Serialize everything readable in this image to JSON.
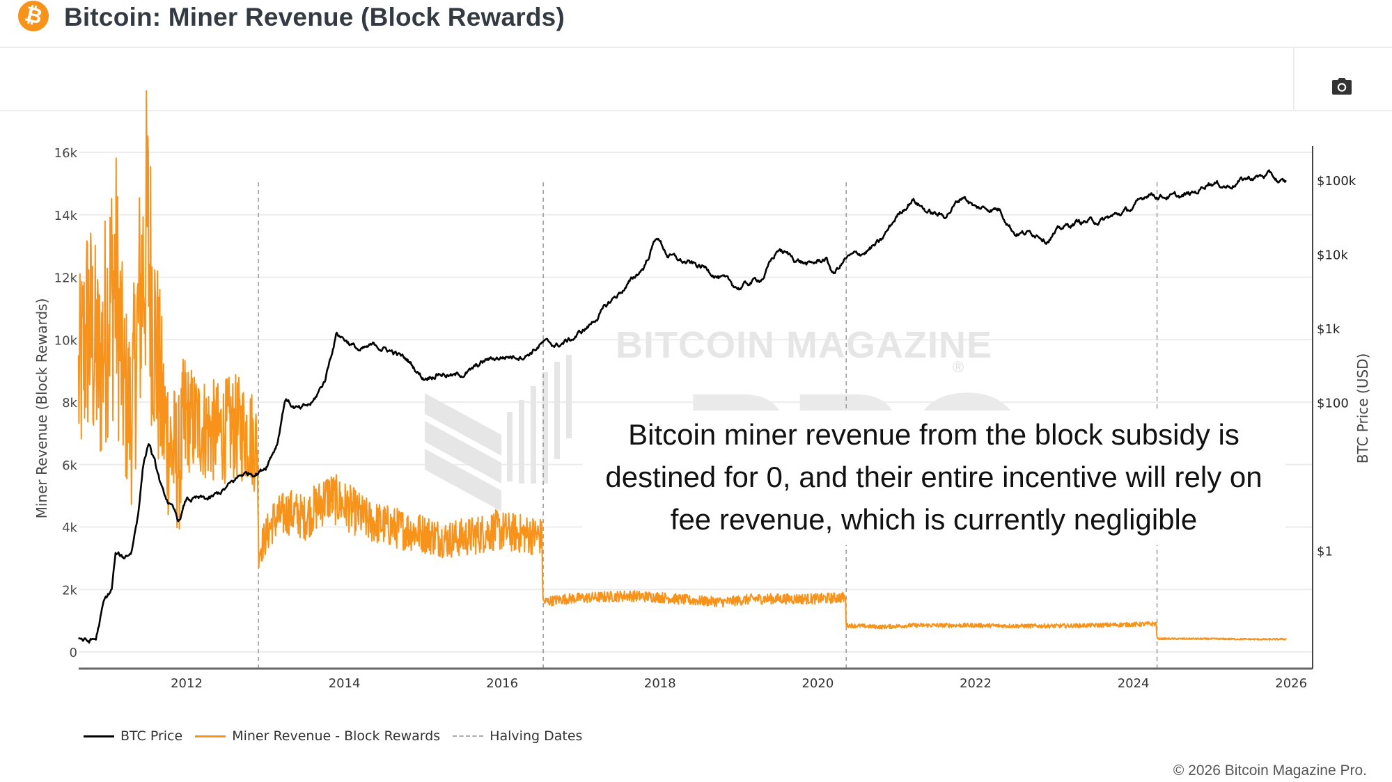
{
  "header": {
    "logo_icon": "bitcoin-logo-icon",
    "logo_glyph": "₿",
    "title": "Bitcoin: Miner Revenue (Block Rewards)"
  },
  "toolbar": {
    "screenshot_icon": "camera-icon"
  },
  "watermark": {
    "line1": "BITCOIN MAGAZINE",
    "line2": "PRO",
    "mark": "®"
  },
  "annotation": {
    "text": "Bitcoin miner revenue from the block subsidy is destined for 0, and their entire incentive will rely on fee revenue, which is currently negligible"
  },
  "footer": {
    "copyright": "© 2026 Bitcoin Magazine Pro."
  },
  "colors": {
    "btc_price": "#000000",
    "miner_revenue": "#f7931a",
    "halving": "#999999",
    "grid": "#ececec",
    "axis": "#444444"
  },
  "chart_data": {
    "type": "line",
    "title": "Bitcoin: Miner Revenue (Block Rewards)",
    "xlabel": "",
    "ylabel": "Miner Revenue (Block Rewards)",
    "y2label": "BTC Price (USD)",
    "x_ticks": [
      "2012",
      "2014",
      "2016",
      "2018",
      "2020",
      "2022",
      "2024",
      "2026"
    ],
    "x_range": [
      2010.63,
      2026.0
    ],
    "y_ticks": [
      "0",
      "2k",
      "4k",
      "6k",
      "8k",
      "10k",
      "12k",
      "14k",
      "16k"
    ],
    "y_range": [
      0,
      16000
    ],
    "y2_scale": "log",
    "y2_ticks": [
      "$1",
      "$100",
      "$1k",
      "$10k",
      "$100k"
    ],
    "y2_tick_values": [
      1,
      100,
      1000,
      10000,
      100000
    ],
    "grid": true,
    "legend_position": "bottom-left",
    "legend": [
      "BTC Price",
      "Miner Revenue - Block Rewards",
      "Halving Dates"
    ],
    "halving_dates": [
      2012.91,
      2016.52,
      2020.36,
      2024.3
    ],
    "series": [
      {
        "name": "BTC Price",
        "axis": "right",
        "points": [
          [
            2010.63,
            0.07
          ],
          [
            2010.75,
            0.06
          ],
          [
            2010.85,
            0.065
          ],
          [
            2010.95,
            0.2
          ],
          [
            2011.05,
            0.3
          ],
          [
            2011.1,
            0.9
          ],
          [
            2011.2,
            0.8
          ],
          [
            2011.3,
            1.0
          ],
          [
            2011.38,
            3
          ],
          [
            2011.45,
            15
          ],
          [
            2011.52,
            30
          ],
          [
            2011.6,
            15
          ],
          [
            2011.7,
            6
          ],
          [
            2011.8,
            4
          ],
          [
            2011.9,
            2.5
          ],
          [
            2012.0,
            5
          ],
          [
            2012.1,
            5
          ],
          [
            2012.3,
            5
          ],
          [
            2012.5,
            7
          ],
          [
            2012.7,
            11
          ],
          [
            2012.91,
            12
          ],
          [
            2013.0,
            14
          ],
          [
            2013.15,
            30
          ],
          [
            2013.25,
            120
          ],
          [
            2013.35,
            90
          ],
          [
            2013.45,
            80
          ],
          [
            2013.6,
            100
          ],
          [
            2013.75,
            200
          ],
          [
            2013.9,
            900
          ],
          [
            2014.0,
            750
          ],
          [
            2014.2,
            500
          ],
          [
            2014.4,
            600
          ],
          [
            2014.6,
            500
          ],
          [
            2014.8,
            380
          ],
          [
            2015.0,
            220
          ],
          [
            2015.2,
            260
          ],
          [
            2015.4,
            230
          ],
          [
            2015.6,
            270
          ],
          [
            2015.8,
            380
          ],
          [
            2016.0,
            420
          ],
          [
            2016.3,
            450
          ],
          [
            2016.52,
            650
          ],
          [
            2016.7,
            600
          ],
          [
            2016.9,
            750
          ],
          [
            2017.1,
            1100
          ],
          [
            2017.4,
            2500
          ],
          [
            2017.6,
            4000
          ],
          [
            2017.8,
            7000
          ],
          [
            2017.96,
            18000
          ],
          [
            2018.1,
            10000
          ],
          [
            2018.3,
            8000
          ],
          [
            2018.6,
            6500
          ],
          [
            2018.9,
            4000
          ],
          [
            2019.0,
            3600
          ],
          [
            2019.3,
            5000
          ],
          [
            2019.5,
            12000
          ],
          [
            2019.7,
            9000
          ],
          [
            2019.9,
            7300
          ],
          [
            2020.1,
            9000
          ],
          [
            2020.2,
            5500
          ],
          [
            2020.36,
            9000
          ],
          [
            2020.6,
            11000
          ],
          [
            2020.8,
            15000
          ],
          [
            2021.0,
            33000
          ],
          [
            2021.2,
            58000
          ],
          [
            2021.4,
            38000
          ],
          [
            2021.6,
            33000
          ],
          [
            2021.85,
            64000
          ],
          [
            2022.0,
            43000
          ],
          [
            2022.3,
            42000
          ],
          [
            2022.5,
            20000
          ],
          [
            2022.8,
            19500
          ],
          [
            2022.9,
            16500
          ],
          [
            2023.1,
            23000
          ],
          [
            2023.3,
            28000
          ],
          [
            2023.6,
            29000
          ],
          [
            2023.8,
            35000
          ],
          [
            2024.0,
            43000
          ],
          [
            2024.2,
            70000
          ],
          [
            2024.3,
            64000
          ],
          [
            2024.6,
            60000
          ],
          [
            2024.8,
            70000
          ],
          [
            2024.95,
            98000
          ],
          [
            2025.2,
            85000
          ],
          [
            2025.4,
            105000
          ],
          [
            2025.6,
            115000
          ],
          [
            2025.75,
            120000
          ],
          [
            2025.85,
            95000
          ],
          [
            2025.94,
            92000
          ]
        ]
      },
      {
        "name": "Miner Revenue - Block Rewards",
        "axis": "left",
        "points": [
          [
            2010.63,
            8500
          ],
          [
            2010.75,
            10500
          ],
          [
            2010.9,
            9000
          ],
          [
            2011.0,
            11000
          ],
          [
            2011.1,
            12000
          ],
          [
            2011.2,
            8500
          ],
          [
            2011.3,
            7500
          ],
          [
            2011.4,
            11000
          ],
          [
            2011.5,
            13500
          ],
          [
            2011.6,
            10000
          ],
          [
            2011.7,
            7500
          ],
          [
            2011.8,
            6500
          ],
          [
            2011.9,
            6000
          ],
          [
            2012.0,
            7500
          ],
          [
            2012.2,
            7200
          ],
          [
            2012.4,
            7000
          ],
          [
            2012.6,
            7200
          ],
          [
            2012.8,
            7000
          ],
          [
            2012.9,
            6500
          ],
          [
            2012.91,
            3200
          ],
          [
            2013.1,
            4200
          ],
          [
            2013.3,
            4500
          ],
          [
            2013.5,
            4300
          ],
          [
            2013.8,
            5000
          ],
          [
            2014.0,
            4700
          ],
          [
            2014.3,
            4200
          ],
          [
            2014.6,
            4000
          ],
          [
            2015.0,
            3800
          ],
          [
            2015.3,
            3600
          ],
          [
            2015.6,
            3700
          ],
          [
            2015.9,
            3900
          ],
          [
            2016.2,
            3800
          ],
          [
            2016.5,
            3700
          ],
          [
            2016.52,
            1600
          ],
          [
            2016.8,
            1700
          ],
          [
            2017.2,
            1750
          ],
          [
            2017.6,
            1800
          ],
          [
            2018.0,
            1750
          ],
          [
            2018.4,
            1650
          ],
          [
            2018.8,
            1600
          ],
          [
            2019.2,
            1700
          ],
          [
            2019.6,
            1700
          ],
          [
            2020.0,
            1700
          ],
          [
            2020.35,
            1750
          ],
          [
            2020.36,
            850
          ],
          [
            2020.8,
            800
          ],
          [
            2021.2,
            850
          ],
          [
            2021.6,
            850
          ],
          [
            2022.0,
            850
          ],
          [
            2022.5,
            830
          ],
          [
            2023.0,
            830
          ],
          [
            2023.5,
            850
          ],
          [
            2024.0,
            880
          ],
          [
            2024.29,
            900
          ],
          [
            2024.3,
            420
          ],
          [
            2024.8,
            420
          ],
          [
            2025.3,
            410
          ],
          [
            2025.7,
            400
          ],
          [
            2025.94,
            410
          ]
        ]
      }
    ]
  }
}
